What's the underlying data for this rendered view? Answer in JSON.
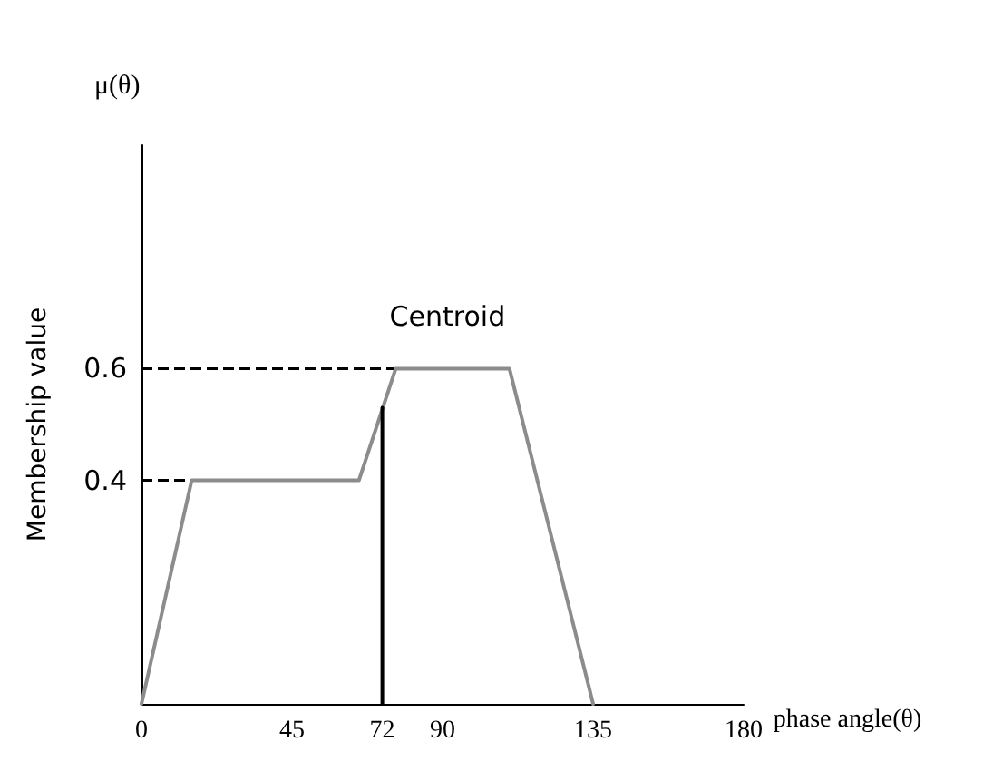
{
  "chart_data": {
    "type": "line",
    "xlabel": "phase angle(θ)",
    "ylabel": "Membership value",
    "annotations": [
      "μ(θ)",
      {
        "text": "Centroid",
        "x": 72,
        "y": 0.53
      }
    ],
    "series": [
      {
        "x": [
          0,
          15,
          65,
          76,
          110,
          135
        ],
        "values": [
          0,
          0.4,
          0.4,
          0.6,
          0.6,
          0
        ],
        "color": "#8c8c8c"
      },
      {
        "x": [
          72,
          72
        ],
        "values": [
          0,
          0.53
        ],
        "color": "#000000"
      }
    ],
    "ref_lines": [
      {
        "axis": "y",
        "value": 0.6,
        "color": "#000000",
        "line_style": "dashed"
      },
      {
        "axis": "y",
        "value": 0.4,
        "color": "#000000",
        "line_style": "dashed"
      }
    ],
    "xlim": [
      0,
      180
    ],
    "xticks": [
      0,
      45,
      72,
      90,
      135,
      180
    ],
    "ylim": [
      0,
      1
    ],
    "yticks": [
      0.4,
      0.6
    ],
    "grid": false,
    "marker": "none",
    "line_style": "solid"
  }
}
